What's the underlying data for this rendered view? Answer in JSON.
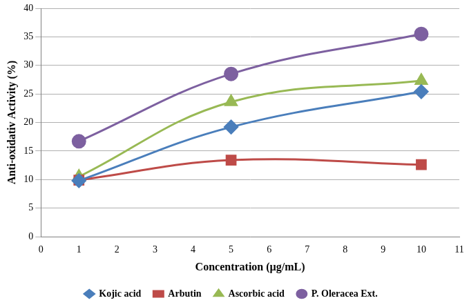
{
  "chart_data": {
    "type": "line",
    "x_label": "Concentration (µg/mL)",
    "y_label": "Anti-oxidativ Activity (%)",
    "x": [
      1,
      5,
      10
    ],
    "series": [
      {
        "name": "Kojic acid",
        "color": "#4a7ebb",
        "marker": "diamond",
        "values": [
          9.8,
          19.2,
          25.4
        ]
      },
      {
        "name": "Arbutin",
        "color": "#be4b48",
        "marker": "square",
        "values": [
          9.9,
          13.4,
          12.6
        ]
      },
      {
        "name": "Ascorbic acid",
        "color": "#98b954",
        "marker": "triangle",
        "values": [
          10.5,
          23.6,
          27.3
        ]
      },
      {
        "name": "P. Oleracea Ext.",
        "color": "#7d60a0",
        "marker": "circle",
        "values": [
          16.7,
          28.5,
          35.5
        ]
      }
    ],
    "xlim": [
      0,
      11
    ],
    "xticks": [
      0,
      1,
      2,
      3,
      4,
      5,
      6,
      7,
      8,
      9,
      10,
      11
    ],
    "ylim": [
      0,
      40
    ],
    "yticks": [
      0,
      5,
      10,
      15,
      20,
      25,
      30,
      35,
      40
    ],
    "grid": "y",
    "legend": "bottom"
  }
}
